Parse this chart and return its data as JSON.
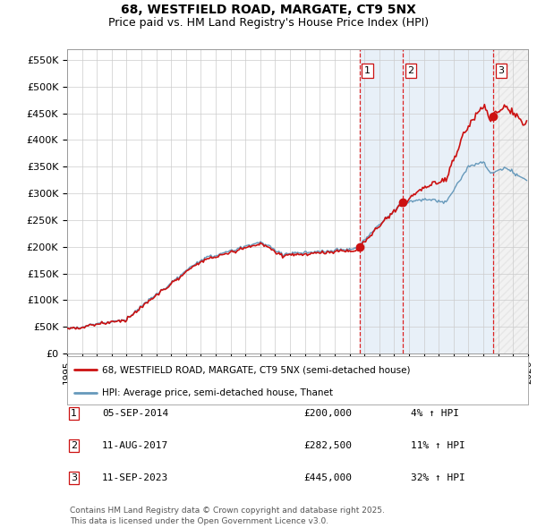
{
  "title": "68, WESTFIELD ROAD, MARGATE, CT9 5NX",
  "subtitle": "Price paid vs. HM Land Registry's House Price Index (HPI)",
  "ylabel_ticks": [
    "£0",
    "£50K",
    "£100K",
    "£150K",
    "£200K",
    "£250K",
    "£300K",
    "£350K",
    "£400K",
    "£450K",
    "£500K",
    "£550K"
  ],
  "ytick_values": [
    0,
    50000,
    100000,
    150000,
    200000,
    250000,
    300000,
    350000,
    400000,
    450000,
    500000,
    550000
  ],
  "xmin": 1995.0,
  "xmax": 2026.0,
  "ylim_top": 570000,
  "sale_dates": [
    2014.68,
    2017.61,
    2023.69
  ],
  "sale_prices": [
    200000,
    282500,
    445000
  ],
  "sale_labels": [
    "1",
    "2",
    "3"
  ],
  "vline_color": "#dd2222",
  "red_line_color": "#cc1111",
  "blue_line_color": "#6699bb",
  "blue_fill_color": "#ddeeff",
  "shade_color": "#e8f0f8",
  "grid_color": "#cccccc",
  "background_color": "#ffffff",
  "legend_items": [
    "68, WESTFIELD ROAD, MARGATE, CT9 5NX (semi-detached house)",
    "HPI: Average price, semi-detached house, Thanet"
  ],
  "table_data": [
    [
      "1",
      "05-SEP-2014",
      "£200,000",
      "4% ↑ HPI"
    ],
    [
      "2",
      "11-AUG-2017",
      "£282,500",
      "11% ↑ HPI"
    ],
    [
      "3",
      "11-SEP-2023",
      "£445,000",
      "32% ↑ HPI"
    ]
  ],
  "footer": "Contains HM Land Registry data © Crown copyright and database right 2025.\nThis data is licensed under the Open Government Licence v3.0."
}
